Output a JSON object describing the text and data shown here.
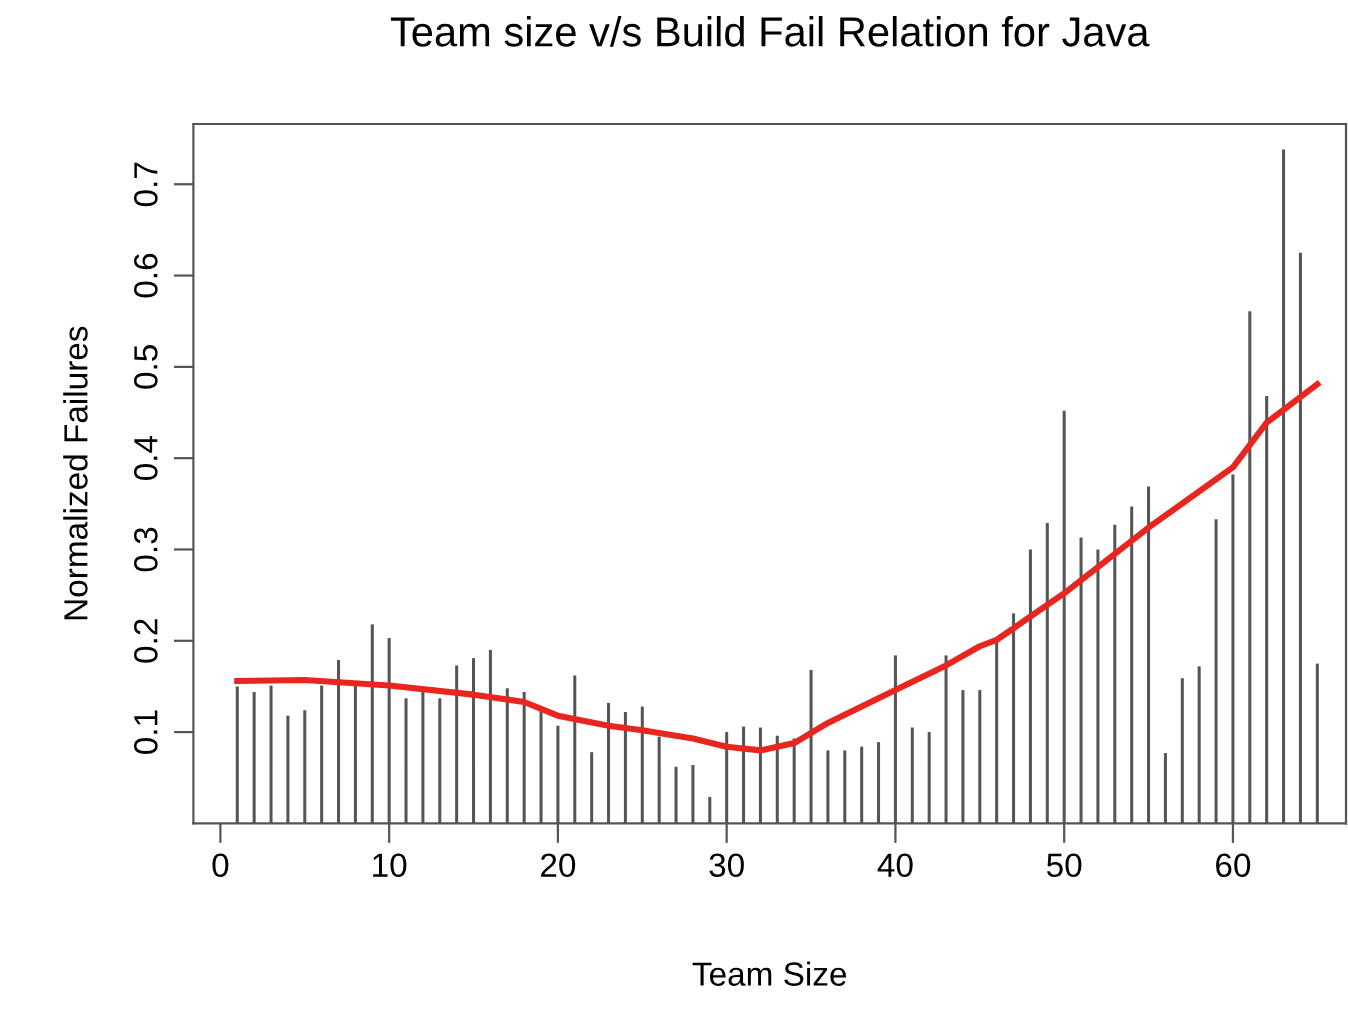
{
  "chart_data": {
    "type": "bar",
    "title": "Team size v/s Build Fail Relation for Java",
    "xlabel": "Team Size",
    "ylabel": "Normalized Failures",
    "xlim": [
      -1.6,
      66.7
    ],
    "ylim": [
      0,
      0.766
    ],
    "xticks": [
      0,
      10,
      20,
      30,
      40,
      50,
      60
    ],
    "yticks": [
      0.1,
      0.2,
      0.3,
      0.4,
      0.5,
      0.6,
      0.7
    ],
    "grid": false,
    "legend": false,
    "series": [
      {
        "color": "#555555",
        "x": [
          1,
          2,
          3,
          4,
          5,
          6,
          7,
          8,
          9,
          10,
          11,
          12,
          13,
          14,
          15,
          16,
          17,
          18,
          19,
          20,
          21,
          22,
          23,
          24,
          25,
          26,
          27,
          28,
          29,
          30,
          31,
          32,
          33,
          34,
          35,
          36,
          37,
          38,
          39,
          40,
          41,
          42,
          43,
          44,
          45,
          46,
          47,
          48,
          49,
          50,
          51,
          52,
          53,
          54,
          55,
          56,
          57,
          58,
          59,
          60,
          61,
          62,
          63,
          64,
          65
        ],
        "values": [
          0.15,
          0.144,
          0.151,
          0.118,
          0.124,
          0.151,
          0.179,
          0.154,
          0.218,
          0.203,
          0.137,
          0.146,
          0.137,
          0.173,
          0.181,
          0.19,
          0.148,
          0.144,
          0.126,
          0.107,
          0.162,
          0.078,
          0.132,
          0.122,
          0.128,
          0.095,
          0.062,
          0.064,
          0.029,
          0.1,
          0.106,
          0.105,
          0.096,
          0.093,
          0.168,
          0.08,
          0.08,
          0.084,
          0.089,
          0.184,
          0.105,
          0.1,
          0.184,
          0.146,
          0.146,
          0.199,
          0.23,
          0.3,
          0.329,
          0.452,
          0.313,
          0.3,
          0.327,
          0.347,
          0.369,
          0.077,
          0.159,
          0.172,
          0.333,
          0.382,
          0.561,
          0.468,
          0.738,
          0.625,
          0.175
        ]
      },
      {
        "type": "line",
        "color": "#e8261f",
        "x": [
          1,
          5,
          10,
          15,
          18,
          20,
          23,
          25,
          28,
          30,
          32,
          34,
          36,
          38,
          40,
          43,
          45,
          46,
          50,
          55,
          60,
          62,
          65
        ],
        "values": [
          0.156,
          0.157,
          0.151,
          0.141,
          0.133,
          0.118,
          0.107,
          0.102,
          0.093,
          0.084,
          0.08,
          0.088,
          0.11,
          0.128,
          0.146,
          0.173,
          0.194,
          0.201,
          0.252,
          0.324,
          0.39,
          0.439,
          0.481
        ]
      }
    ]
  }
}
